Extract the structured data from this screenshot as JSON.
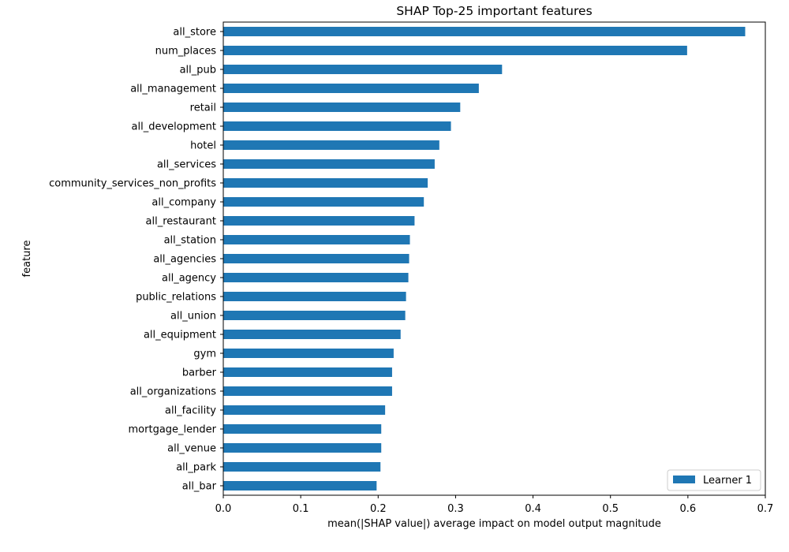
{
  "chart_data": {
    "type": "bar",
    "orientation": "horizontal",
    "title": "SHAP Top-25 important features",
    "xlabel": "mean(|SHAP value|) average impact on model output magnitude",
    "ylabel": "feature",
    "xlim": [
      0.0,
      0.7
    ],
    "x_ticks": [
      "0.0",
      "0.1",
      "0.2",
      "0.3",
      "0.4",
      "0.5",
      "0.6",
      "0.7"
    ],
    "grid": false,
    "legend_position": "bottom-right",
    "categories": [
      "all_store",
      "num_places",
      "all_pub",
      "all_management",
      "retail",
      "all_development",
      "hotel",
      "all_services",
      "community_services_non_profits",
      "all_company",
      "all_restaurant",
      "all_station",
      "all_agencies",
      "all_agency",
      "public_relations",
      "all_union",
      "all_equipment",
      "gym",
      "barber",
      "all_organizations",
      "all_facility",
      "mortgage_lender",
      "all_venue",
      "all_park",
      "all_bar"
    ],
    "series": [
      {
        "name": "Learner 1",
        "color": "#1f77b4",
        "values": [
          0.674,
          0.599,
          0.36,
          0.33,
          0.306,
          0.294,
          0.279,
          0.273,
          0.264,
          0.259,
          0.247,
          0.241,
          0.24,
          0.239,
          0.236,
          0.235,
          0.229,
          0.22,
          0.218,
          0.218,
          0.209,
          0.204,
          0.204,
          0.203,
          0.198
        ]
      }
    ]
  }
}
